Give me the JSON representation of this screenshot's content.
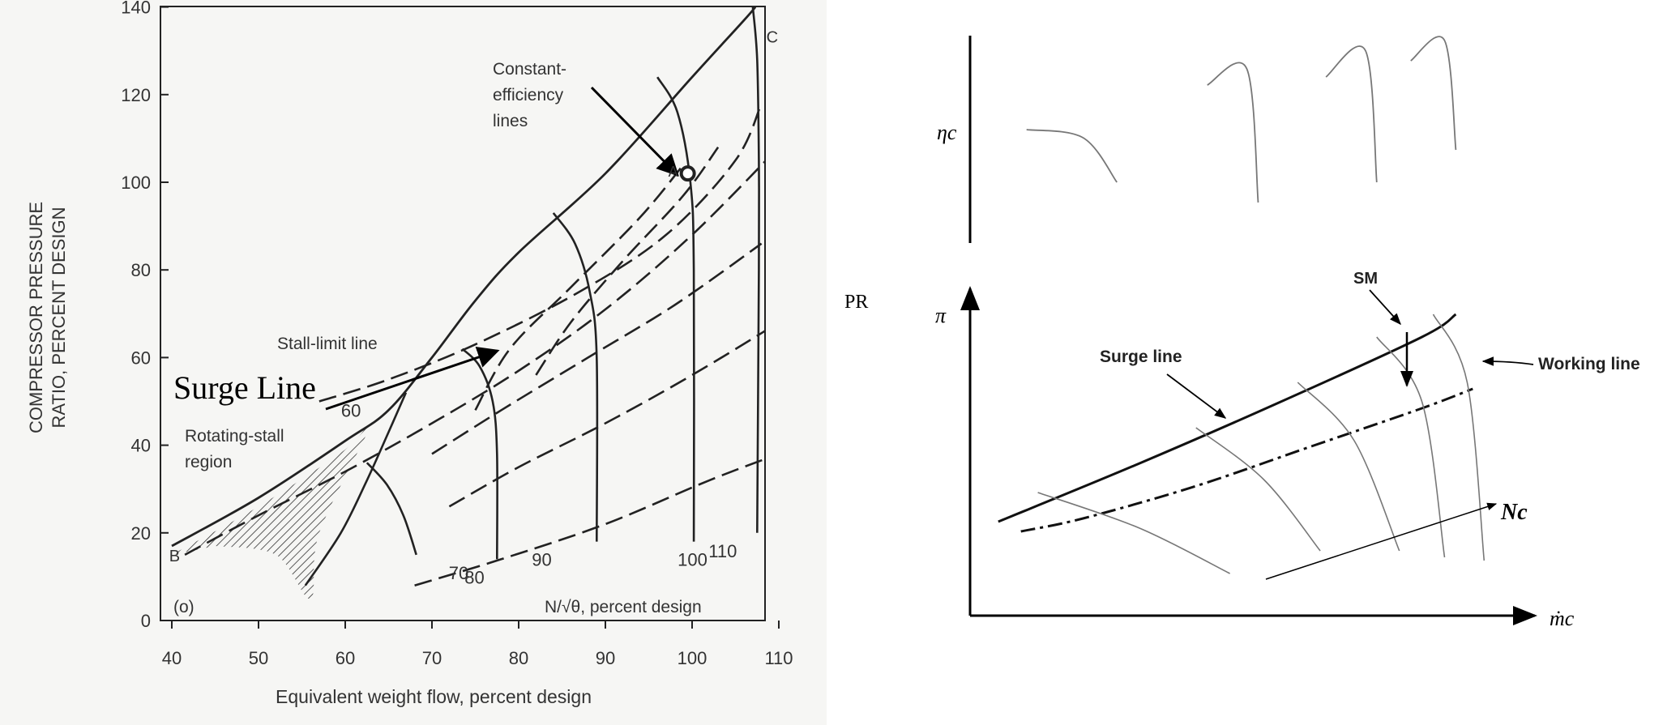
{
  "chart_data": [
    {
      "type": "line",
      "panel": "left",
      "xlabel": "Equivalent weight flow, percent design",
      "ylabel_lines": [
        "COMPRESSOR PRESSURE",
        "RATIO, PERCENT DESIGN"
      ],
      "xlim": [
        40,
        110
      ],
      "ylim": [
        0,
        140
      ],
      "x_ticks": [
        40,
        50,
        60,
        70,
        80,
        90,
        100,
        110
      ],
      "y_ticks": [
        0,
        20,
        40,
        60,
        80,
        100,
        120,
        140
      ],
      "panel_tag": "(o)",
      "speed_caption": "N/√θ, percent design",
      "speed_lines": [
        {
          "name": "60",
          "points": [
            [
              55.4,
              8
            ],
            [
              59.5,
              20
            ],
            [
              62.5,
              32
            ],
            [
              65,
              43
            ],
            [
              67,
              52
            ]
          ]
        },
        {
          "name": "70",
          "points": [
            [
              62.5,
              36
            ],
            [
              64.8,
              31
            ],
            [
              66.7,
              24
            ],
            [
              68.2,
              15
            ]
          ]
        },
        {
          "name": "80",
          "points": [
            [
              73.5,
              62
            ],
            [
              75.5,
              58
            ],
            [
              77,
              50
            ],
            [
              77.5,
              38
            ],
            [
              77.5,
              14
            ]
          ]
        },
        {
          "name": "90",
          "points": [
            [
              84,
              93
            ],
            [
              86.5,
              86
            ],
            [
              88.2,
              75
            ],
            [
              89,
              60
            ],
            [
              89,
              18
            ]
          ]
        },
        {
          "name": "100",
          "points": [
            [
              96,
              124
            ],
            [
              98.3,
              116
            ],
            [
              99.8,
              100
            ],
            [
              100.2,
              80
            ],
            [
              100.2,
              18
            ]
          ]
        },
        {
          "name": "110",
          "points": [
            [
              107,
              140
            ],
            [
              107.5,
              128
            ],
            [
              107.7,
              105
            ],
            [
              107.7,
              80
            ],
            [
              107.5,
              20
            ]
          ]
        }
      ],
      "surge_line": [
        [
          40,
          17
        ],
        [
          50,
          28
        ],
        [
          60,
          41
        ],
        [
          65,
          48
        ],
        [
          70,
          60
        ],
        [
          75,
          73
        ],
        [
          80,
          84
        ],
        [
          90,
          102
        ],
        [
          100,
          124
        ],
        [
          106,
          137
        ],
        [
          107.3,
          140
        ]
      ],
      "working_line": [
        [
          41.5,
          15
        ],
        [
          50,
          24
        ],
        [
          60,
          34
        ],
        [
          70,
          45
        ],
        [
          80,
          57
        ],
        [
          90,
          71
        ],
        [
          100,
          88
        ],
        [
          110,
          108
        ]
      ],
      "efficiency_loops": [
        [
          [
            57,
            50
          ],
          [
            65,
            55
          ],
          [
            75,
            63
          ],
          [
            87,
            75
          ],
          [
            97,
            88
          ],
          [
            105,
            105
          ],
          [
            108,
            118
          ]
        ],
        [
          [
            70,
            38
          ],
          [
            78,
            48
          ],
          [
            88,
            60
          ],
          [
            98,
            72
          ],
          [
            108,
            86
          ]
        ],
        [
          [
            72,
            26
          ],
          [
            80,
            35
          ],
          [
            90,
            45
          ],
          [
            100,
            56
          ],
          [
            110,
            68
          ]
        ],
        [
          [
            68,
            8
          ],
          [
            78,
            14
          ],
          [
            90,
            22
          ],
          [
            102,
            32
          ],
          [
            110,
            38
          ]
        ],
        [
          [
            82,
            56
          ],
          [
            86,
            68
          ],
          [
            92,
            82
          ],
          [
            99,
            97
          ],
          [
            103,
            108
          ]
        ],
        [
          [
            75,
            48
          ],
          [
            79,
            62
          ],
          [
            86,
            76
          ],
          [
            94,
            92
          ],
          [
            99,
            104
          ]
        ]
      ],
      "rotating_stall_region": [
        [
          40,
          15
        ],
        [
          50,
          26
        ],
        [
          60,
          39
        ],
        [
          63,
          45
        ],
        [
          57,
          20
        ],
        [
          56,
          5
        ],
        [
          52,
          15
        ],
        [
          45,
          17
        ]
      ],
      "design_point": {
        "label": "A",
        "x": 99.5,
        "y": 102
      },
      "point_labels": [
        {
          "label": "B",
          "x": 41,
          "y": 15
        },
        {
          "label": "C",
          "x": 108,
          "y": 130
        }
      ],
      "annotations": [
        {
          "text_lines": [
            "Constant-",
            "efficiency",
            "lines"
          ]
        },
        {
          "text": "Stall-limit line"
        },
        {
          "text_lines": [
            "Rotating-stall",
            "region"
          ]
        },
        {
          "text": "Surge Line"
        }
      ]
    },
    {
      "type": "line",
      "panel": "right",
      "ylabel_top": "ηc",
      "ylabel_bottom": "π",
      "xlabel": "ṁc",
      "pr_label": "PR",
      "labels": {
        "surge": "Surge line",
        "working": "Working line",
        "margin": "SM",
        "speed": "Nc"
      },
      "surge_line": [
        [
          0.05,
          0.29
        ],
        [
          0.3,
          0.47
        ],
        [
          0.55,
          0.66
        ],
        [
          0.8,
          0.86
        ],
        [
          0.86,
          0.93
        ]
      ],
      "working_line": [
        [
          0.09,
          0.26
        ],
        [
          0.2,
          0.3
        ],
        [
          0.4,
          0.4
        ],
        [
          0.6,
          0.52
        ],
        [
          0.8,
          0.64
        ],
        [
          0.89,
          0.7
        ]
      ],
      "speed_lines": [
        [
          [
            0.12,
            0.38
          ],
          [
            0.3,
            0.27
          ],
          [
            0.46,
            0.13
          ]
        ],
        [
          [
            0.4,
            0.58
          ],
          [
            0.52,
            0.42
          ],
          [
            0.62,
            0.2
          ]
        ],
        [
          [
            0.58,
            0.72
          ],
          [
            0.68,
            0.54
          ],
          [
            0.76,
            0.2
          ]
        ],
        [
          [
            0.72,
            0.86
          ],
          [
            0.8,
            0.66
          ],
          [
            0.84,
            0.18
          ]
        ],
        [
          [
            0.82,
            0.93
          ],
          [
            0.88,
            0.72
          ],
          [
            0.91,
            0.17
          ]
        ]
      ],
      "efficiency_curves": [
        [
          [
            0.1,
            0.56
          ],
          [
            0.2,
            0.52
          ],
          [
            0.26,
            0.3
          ]
        ],
        [
          [
            0.42,
            0.78
          ],
          [
            0.49,
            0.86
          ],
          [
            0.51,
            0.2
          ]
        ],
        [
          [
            0.63,
            0.82
          ],
          [
            0.7,
            0.95
          ],
          [
            0.72,
            0.3
          ]
        ],
        [
          [
            0.78,
            0.9
          ],
          [
            0.84,
            1.0
          ],
          [
            0.86,
            0.46
          ]
        ]
      ]
    }
  ]
}
